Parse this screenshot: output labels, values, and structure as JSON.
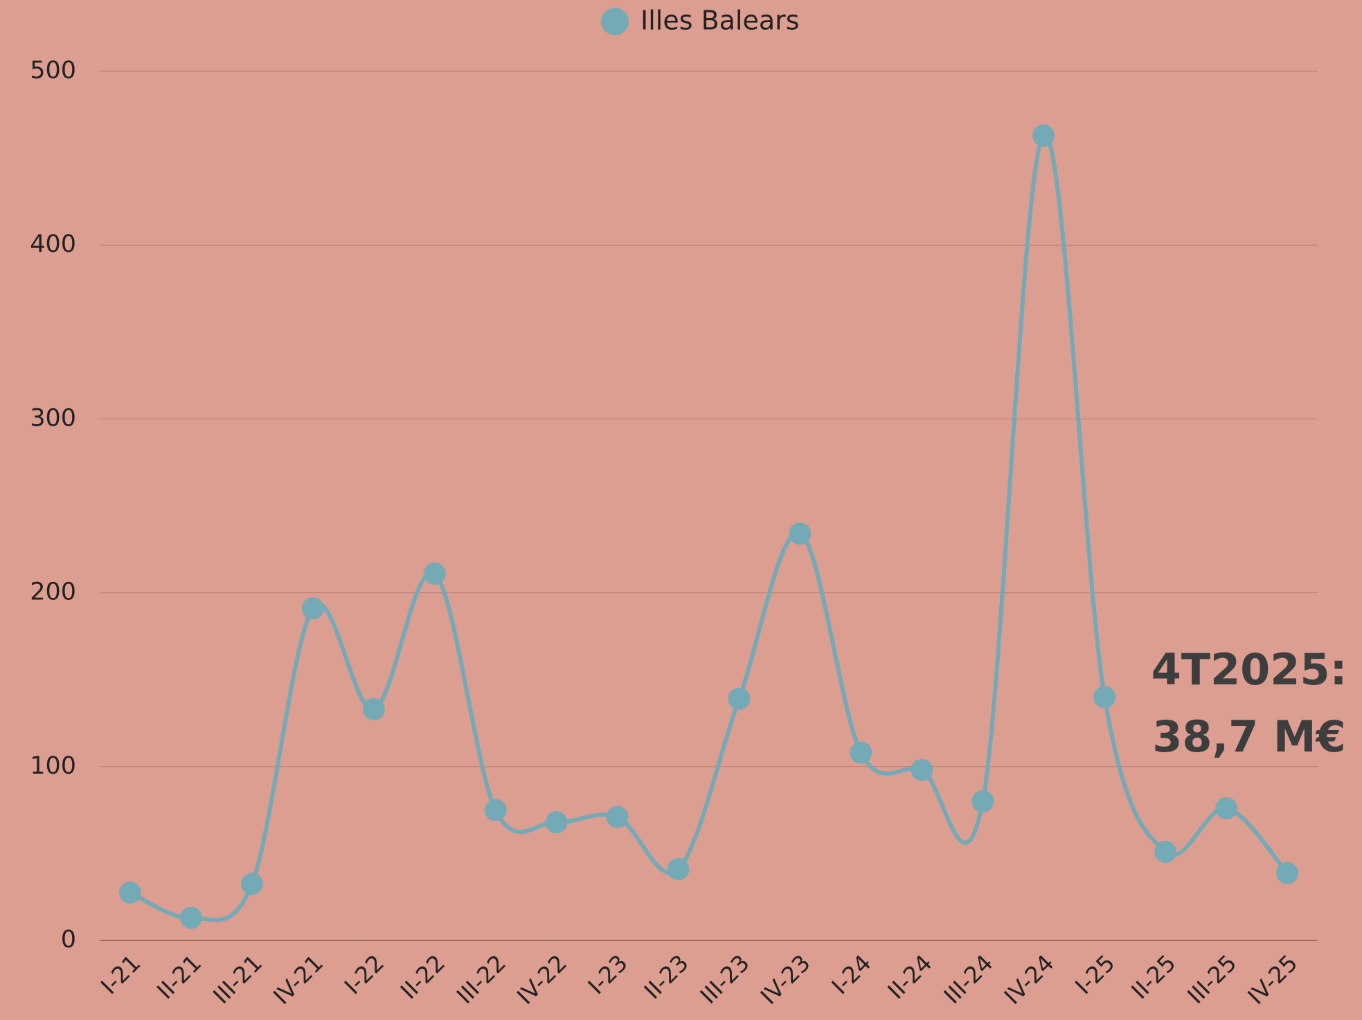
{
  "chart_data": {
    "type": "line",
    "categories": [
      "I-21",
      "II-21",
      "III-21",
      "IV-21",
      "I-22",
      "II-22",
      "III-22",
      "IV-22",
      "I-23",
      "II-23",
      "III-23",
      "IV-23",
      "I-24",
      "II-24",
      "III-24",
      "IV-24",
      "I-25",
      "II-25",
      "III-25",
      "IV-25"
    ],
    "series": [
      {
        "name": "Illes Balears",
        "color": "#74a9b6",
        "values": [
          27.5,
          13,
          32.5,
          191,
          133,
          211,
          75,
          68,
          71,
          41,
          139,
          234,
          108,
          98,
          80,
          463,
          140,
          51,
          76,
          38.7
        ]
      }
    ],
    "ylim": [
      0,
      500
    ],
    "yticks": [
      0,
      100,
      200,
      300,
      400,
      500
    ],
    "grid": true,
    "smooth": true,
    "legend": "top",
    "annotation": [
      "4T2025:",
      "38,7 M€"
    ]
  }
}
